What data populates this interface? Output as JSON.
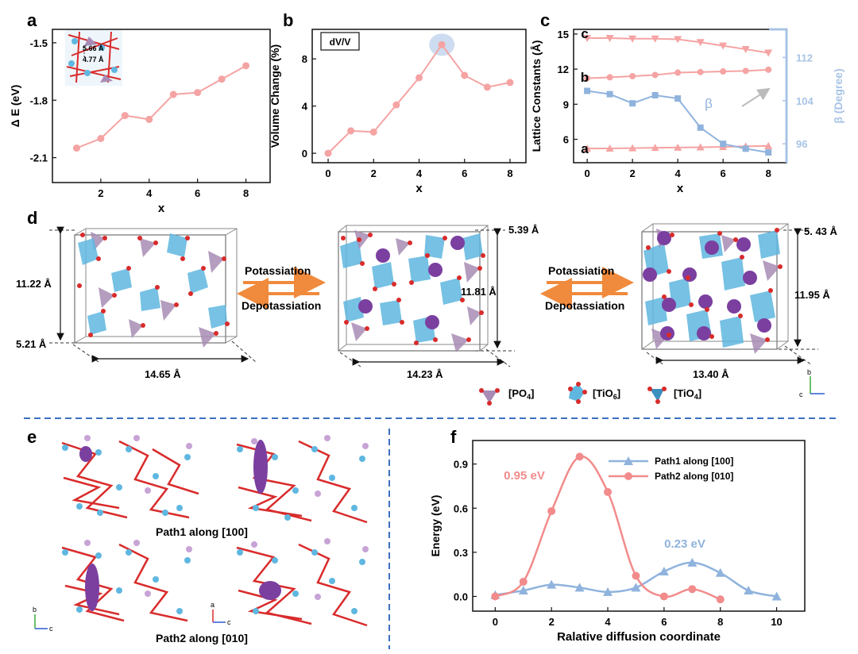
{
  "panels": {
    "a": "a",
    "b": "b",
    "c": "c",
    "d": "d",
    "e": "e",
    "f": "f"
  },
  "colors": {
    "pink": "#f28b8b",
    "pink_light": "#f5a3a3",
    "blue": "#8fb3dd",
    "blue_axis": "#a8c4e6",
    "purple": "#7b3fa0",
    "tri_purple": "#a88cb5",
    "tio6": "#5fb7e0",
    "oxygen": "#d92b2b",
    "arrow_orange": "#f08a3c",
    "dash_blue": "#3b6fc2"
  },
  "chart_data": [
    {
      "panel": "a",
      "type": "line",
      "xlabel": "x",
      "ylabel": "Δ E (eV)",
      "xticks": [
        "2",
        "4",
        "6",
        "8"
      ],
      "yticks": [
        "-1.5",
        "-1.8",
        "-2.1"
      ],
      "xlim": [
        0,
        9
      ],
      "ylim": [
        -2.23,
        -1.43
      ],
      "x": [
        1,
        2,
        3,
        4,
        5,
        6,
        7,
        8
      ],
      "values": [
        -2.05,
        -2.0,
        -1.88,
        -1.9,
        -1.77,
        -1.76,
        -1.69,
        -1.62
      ],
      "inset_labels": [
        "5.66 Å",
        "4.77 Å"
      ]
    },
    {
      "panel": "b",
      "type": "line",
      "xlabel": "x",
      "ylabel": "Volume Change (%)",
      "legend": "dV/V",
      "xticks": [
        "0",
        "2",
        "4",
        "6",
        "8"
      ],
      "yticks": [
        "0",
        "4",
        "8"
      ],
      "xlim": [
        -0.7,
        8.7
      ],
      "ylim": [
        -0.8,
        10.5
      ],
      "x": [
        0,
        1,
        2,
        3,
        4,
        5,
        6,
        7,
        8
      ],
      "values": [
        0,
        1.9,
        1.8,
        4.1,
        6.4,
        9.2,
        6.6,
        5.6,
        6.0
      ]
    },
    {
      "panel": "c",
      "type": "line",
      "xlabel": "x",
      "ylabel": "Lattice Constants (Å)",
      "ylabel_right": "β (Degree)",
      "xticks": [
        "0",
        "2",
        "4",
        "6",
        "8"
      ],
      "yticks": [
        "6",
        "9",
        "12",
        "15"
      ],
      "yticks_right": [
        "96",
        "104",
        "112"
      ],
      "xlim": [
        -0.6,
        8.8
      ],
      "ylim": [
        4,
        15.4
      ],
      "ylim_right": [
        92.5,
        117.2
      ],
      "x": [
        0,
        1,
        2,
        3,
        4,
        5,
        6,
        7,
        8
      ],
      "series": [
        {
          "name": "c",
          "marker": "triangle-down",
          "values": [
            14.65,
            14.65,
            14.6,
            14.6,
            14.55,
            14.3,
            14.0,
            13.7,
            13.4
          ]
        },
        {
          "name": "b",
          "marker": "circle",
          "values": [
            11.22,
            11.3,
            11.4,
            11.5,
            11.7,
            11.75,
            11.8,
            11.85,
            11.95
          ]
        },
        {
          "name": "a",
          "marker": "triangle-up",
          "values": [
            5.21,
            5.22,
            5.25,
            5.28,
            5.3,
            5.32,
            5.35,
            5.4,
            5.43
          ]
        }
      ],
      "series_right": {
        "name": "β",
        "marker": "square",
        "values": [
          105.8,
          105.2,
          103.5,
          105.0,
          104.4,
          99.0,
          96.0,
          95.1,
          94.4
        ]
      }
    },
    {
      "panel": "f",
      "type": "line",
      "xlabel": "Ralative diffusion coordinate",
      "ylabel": "Energy (eV)",
      "xticks": [
        "0",
        "2",
        "4",
        "6",
        "8",
        "10"
      ],
      "yticks": [
        "0.0",
        "0.3",
        "0.6",
        "0.9"
      ],
      "xlim": [
        -0.8,
        11
      ],
      "ylim": [
        -0.1,
        1.06
      ],
      "series": [
        {
          "name": "Path1 along [100]",
          "marker": "triangle-up",
          "x": [
            0,
            1,
            2,
            3,
            4,
            5,
            6,
            7,
            8,
            9,
            10
          ],
          "values": [
            0.01,
            0.04,
            0.08,
            0.06,
            0.03,
            0.06,
            0.17,
            0.23,
            0.16,
            0.04,
            0.0
          ]
        },
        {
          "name": "Path2 along [010]",
          "marker": "circle",
          "x": [
            0,
            1,
            2,
            3,
            4,
            5,
            6,
            7,
            8
          ],
          "values": [
            0.0,
            0.1,
            0.58,
            0.95,
            0.71,
            0.14,
            0.0,
            0.05,
            -0.02
          ]
        }
      ],
      "annotations": [
        "0.95 eV",
        "0.23 eV"
      ]
    }
  ],
  "panel_d": {
    "arrow_top": "Potassiation",
    "arrow_bottom": "Depotassiation",
    "structures": [
      {
        "height": "11.22 Å",
        "depth": "5.21 Å",
        "width": "14.65 Å"
      },
      {
        "height": "11.81 Å",
        "depth": "5.39 Å",
        "width": "14.23 Å"
      },
      {
        "height": "11.95 Å",
        "depth": "5. 43 Å",
        "width": "13.40 Å"
      }
    ],
    "legend": [
      {
        "label": "[PO",
        "sub": "4",
        "tail": "]"
      },
      {
        "label": "[TiO",
        "sub": "6",
        "tail": "]"
      },
      {
        "label": "[TiO",
        "sub": "4",
        "tail": "]"
      }
    ],
    "axes": {
      "b": "b",
      "c": "c"
    }
  },
  "panel_e": {
    "caption1": "Path1 along [100]",
    "caption2": "Path2 along [010]",
    "axes1": {
      "b": "b",
      "c": "c"
    },
    "axes2": {
      "a": "a",
      "c": "c"
    }
  }
}
